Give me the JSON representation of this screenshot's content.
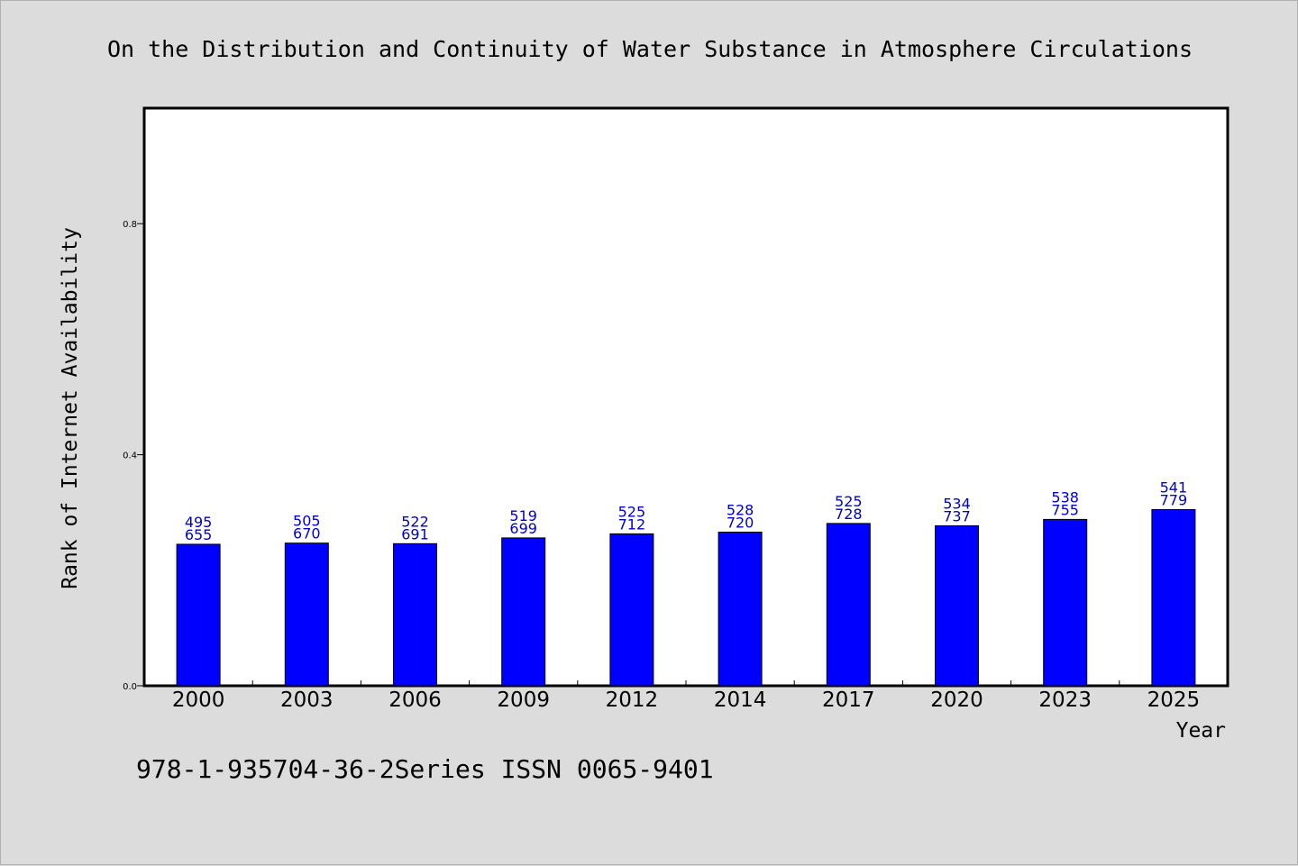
{
  "chart_data": {
    "type": "bar",
    "title": "On the Distribution and Continuity of Water Substance in Atmosphere Circulations",
    "xlabel": "Year",
    "ylabel": "Rank of Internet Availability",
    "footer": "978-1-935704-36-2Series ISSN 0065-9401",
    "categories": [
      "2000",
      "2003",
      "2006",
      "2009",
      "2012",
      "2014",
      "2017",
      "2020",
      "2023",
      "2025"
    ],
    "values": [
      0.245,
      0.247,
      0.246,
      0.256,
      0.263,
      0.266,
      0.281,
      0.277,
      0.288,
      0.305
    ],
    "labels_top": [
      "495",
      "505",
      "522",
      "519",
      "525",
      "528",
      "525",
      "534",
      "538",
      "541"
    ],
    "labels_bottom": [
      "655",
      "670",
      "691",
      "699",
      "712",
      "720",
      "728",
      "737",
      "755",
      "779"
    ],
    "yticks": [
      "0.0",
      "0.4",
      "0.8"
    ],
    "ytick_values": [
      0.0,
      0.4,
      0.8
    ],
    "ylim": [
      0,
      1.0
    ],
    "grid": false,
    "legend": "none",
    "colors": {
      "bar": "#0000ff",
      "bar_edge": "#000000",
      "label_text": "#0000cc",
      "background": "#dcdcdc",
      "plot_background": "#ffffff"
    }
  }
}
